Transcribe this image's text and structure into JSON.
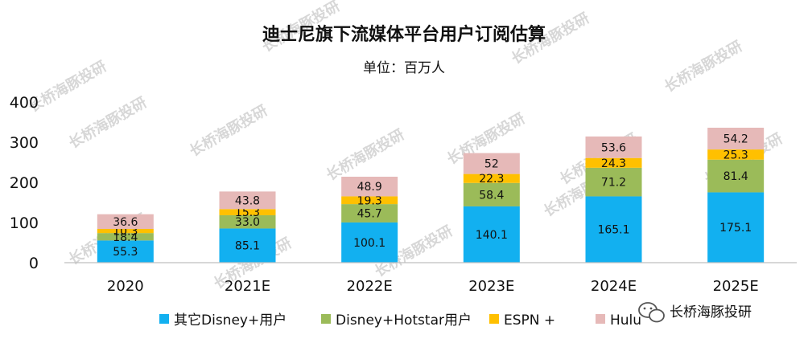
{
  "chart_data": {
    "type": "bar",
    "stacked": true,
    "title": "迪士尼旗下流媒体平台用户订阅估算",
    "subtitle": "单位：百万人",
    "categories": [
      "2020",
      "2021E",
      "2022E",
      "2023E",
      "2024E",
      "2025E"
    ],
    "series": [
      {
        "name": "其它Disney+用户",
        "color": "#12b0f0",
        "values": [
          55.3,
          85.1,
          100.1,
          140.1,
          165.1,
          175.1
        ],
        "labels": [
          "55.3",
          "85.1",
          "100.1",
          "140.1",
          "165.1",
          "175.1"
        ]
      },
      {
        "name": "Disney+Hotstar用户",
        "color": "#9bbb59",
        "values": [
          18.4,
          33.0,
          45.7,
          58.4,
          71.2,
          81.4
        ],
        "labels": [
          "18.4",
          "33.0",
          "45.7",
          "58.4",
          "71.2",
          "81.4"
        ]
      },
      {
        "name": "ESPN +",
        "color": "#ffc000",
        "values": [
          10.3,
          15.3,
          19.3,
          22.3,
          24.3,
          25.3
        ],
        "labels": [
          "10.3",
          "15.3",
          "19.3",
          "22.3",
          "24.3",
          "25.3"
        ]
      },
      {
        "name": "Hulu",
        "color": "#e6b9b8",
        "values": [
          36.6,
          43.8,
          48.9,
          52,
          53.6,
          54.2
        ],
        "labels": [
          "36.6",
          "43.8",
          "48.9",
          "52",
          "53.6",
          "54.2"
        ]
      }
    ],
    "ylim": [
      0,
      400
    ],
    "yticks": [
      "0",
      "100",
      "200",
      "300",
      "400"
    ],
    "xlabel": "",
    "ylabel": "",
    "legend": "bottom",
    "grid": false
  },
  "watermark": {
    "text": "长桥海豚投研",
    "badge_text": "长桥海豚投研",
    "badge_icon": "wechat-icon"
  }
}
